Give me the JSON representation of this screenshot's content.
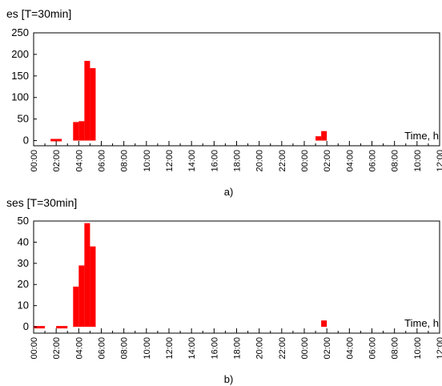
{
  "chart_data": [
    {
      "type": "bar",
      "panel_label": "a)",
      "title": "es [T=30min]",
      "xlabel": "Time, h",
      "ylabel": "",
      "ylim": [
        -12,
        250
      ],
      "yticks": [
        0,
        50,
        100,
        150,
        200,
        250
      ],
      "x_range": [
        "00:00",
        "12:00 (next day)"
      ],
      "x_tick_labels": [
        "00:00",
        "02:00",
        "04:00",
        "06:00",
        "08:00",
        "10:00",
        "12:00",
        "14:00",
        "16:00",
        "18:00",
        "20:00",
        "22:00",
        "00:00",
        "02:00",
        "04:00",
        "06:00",
        "08:00",
        "10:00",
        "12:00"
      ],
      "bars": [
        {
          "start": "01:30",
          "end": "02:30",
          "value": 2
        },
        {
          "start": "03:30",
          "end": "04:00",
          "value": 43
        },
        {
          "start": "04:00",
          "end": "04:30",
          "value": 45
        },
        {
          "start": "04:30",
          "end": "05:00",
          "value": 185
        },
        {
          "start": "05:00",
          "end": "05:30",
          "value": 168
        },
        {
          "start": "01:00 (next day)",
          "end": "01:30 (next day)",
          "value": 10
        },
        {
          "start": "01:30 (next day)",
          "end": "02:00 (next day)",
          "value": 22
        }
      ],
      "bar_color": "#ff0000",
      "grid": false
    },
    {
      "type": "bar",
      "panel_label": "b)",
      "title": "ses [T=30min]",
      "xlabel": "Time, h",
      "ylabel": "",
      "ylim": [
        -3,
        50
      ],
      "yticks": [
        0,
        10,
        20,
        30,
        40,
        50
      ],
      "x_range": [
        "00:00",
        "12:00 (next day)"
      ],
      "x_tick_labels": [
        "00:00",
        "02:00",
        "04:00",
        "06:00",
        "08:00",
        "10:00",
        "12:00",
        "14:00",
        "16:00",
        "18:00",
        "20:00",
        "22:00",
        "00:00",
        "02:00",
        "04:00",
        "06:00",
        "08:00",
        "10:00",
        "12:00"
      ],
      "bars": [
        {
          "start": "00:00",
          "end": "00:30",
          "value": 0
        },
        {
          "start": "00:30",
          "end": "01:00",
          "value": -0.5
        },
        {
          "start": "02:00",
          "end": "03:00",
          "value": -0.5
        },
        {
          "start": "03:30",
          "end": "04:00",
          "value": 19
        },
        {
          "start": "04:00",
          "end": "04:30",
          "value": 29
        },
        {
          "start": "04:30",
          "end": "05:00",
          "value": 49
        },
        {
          "start": "05:00",
          "end": "05:30",
          "value": 38
        },
        {
          "start": "01:30 (next day)",
          "end": "02:00 (next day)",
          "value": 3
        }
      ],
      "bar_color": "#ff0000",
      "grid": false
    }
  ]
}
